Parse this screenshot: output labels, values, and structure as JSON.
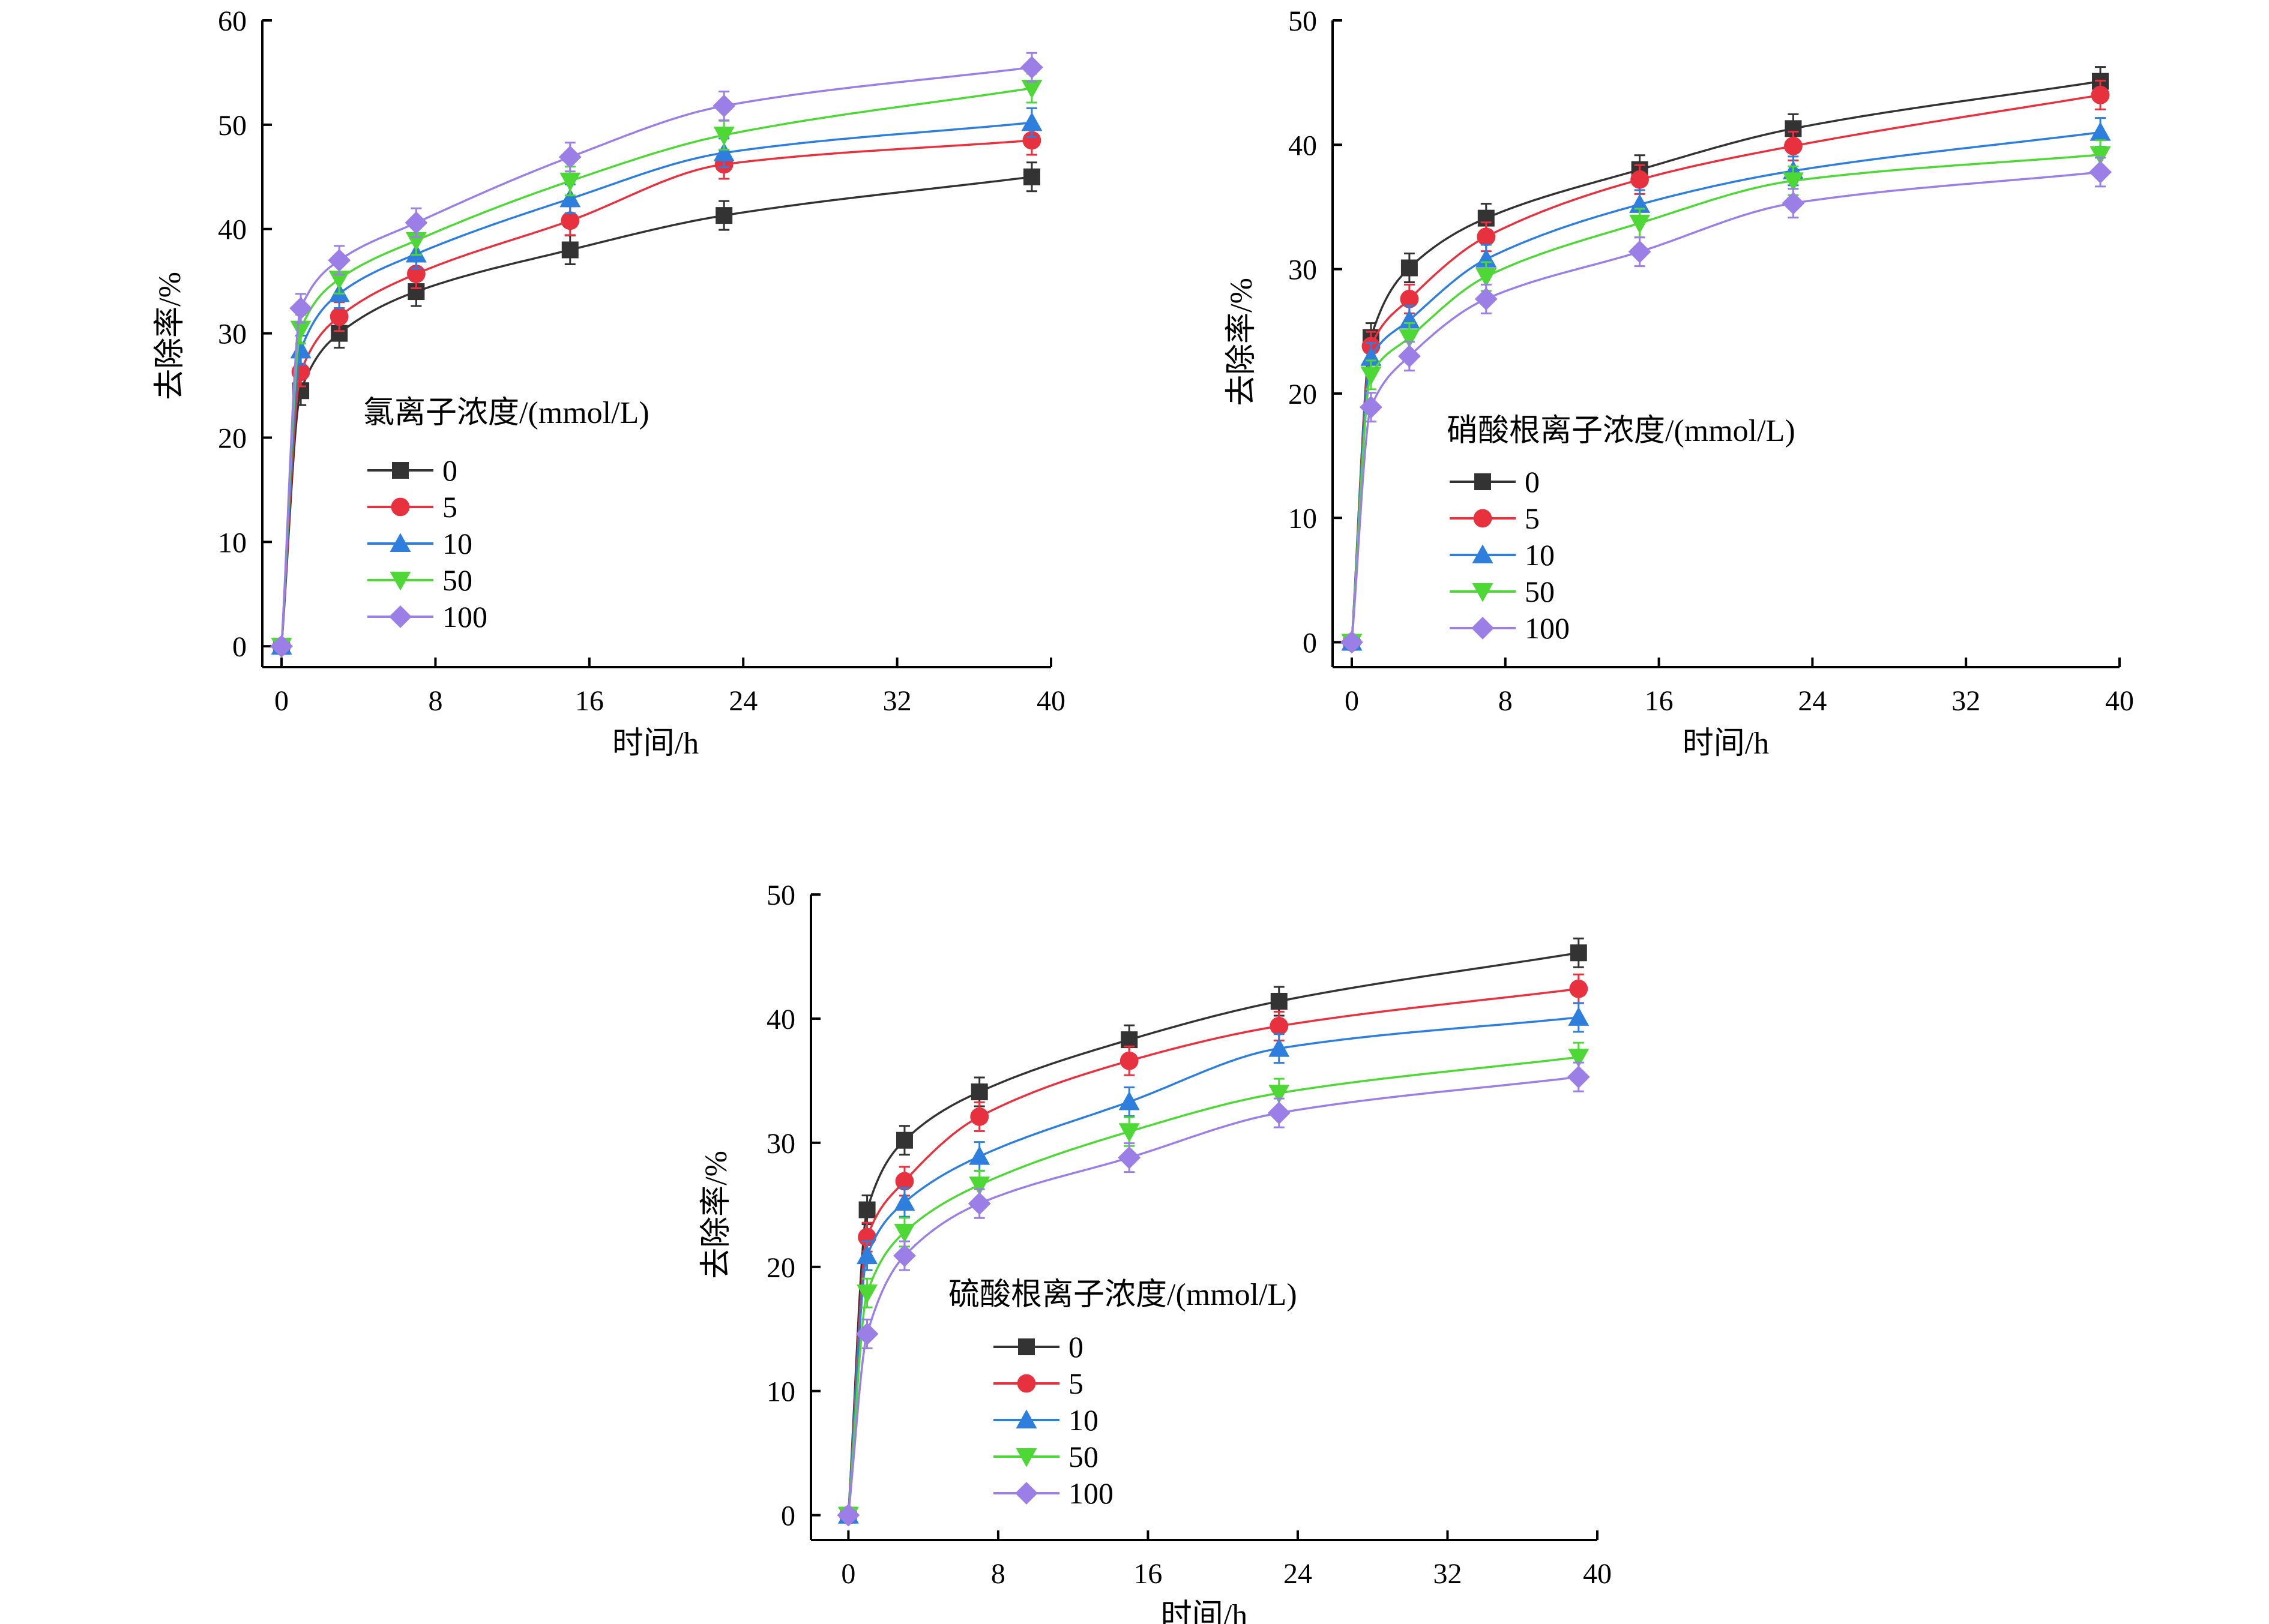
{
  "chart_data": [
    {
      "type": "line",
      "title": "",
      "legend_title": "氯离子浓度/(mmol/L)",
      "xlabel": "时间/h",
      "ylabel": "去除率/%",
      "xlim": [
        -1,
        40
      ],
      "ylim": [
        -2,
        60
      ],
      "xticks": [
        "0",
        "8",
        "16",
        "24",
        "32",
        "40"
      ],
      "yticks": [
        "0",
        "10",
        "20",
        "30",
        "40",
        "50",
        "60"
      ],
      "x": [
        0,
        1,
        3,
        7,
        15,
        23,
        39
      ],
      "series": [
        {
          "name": "0",
          "color": "#333333",
          "marker": "square",
          "values": [
            0,
            24.5,
            30.0,
            34.0,
            38.0,
            41.3,
            45.0
          ]
        },
        {
          "name": "5",
          "color": "#e8313f",
          "marker": "circle",
          "values": [
            0,
            26.3,
            31.6,
            35.7,
            40.8,
            46.2,
            48.5
          ]
        },
        {
          "name": "10",
          "color": "#2e7fdd",
          "marker": "triangle-up",
          "values": [
            0,
            28.4,
            33.8,
            37.6,
            42.9,
            47.3,
            50.2
          ]
        },
        {
          "name": "50",
          "color": "#4dd836",
          "marker": "triangle-down",
          "values": [
            0,
            30.4,
            35.2,
            38.9,
            44.6,
            49.0,
            53.5
          ]
        },
        {
          "name": "100",
          "color": "#9b7fe6",
          "marker": "diamond",
          "values": [
            0,
            32.4,
            37.0,
            40.6,
            46.9,
            51.8,
            55.5
          ]
        }
      ]
    },
    {
      "type": "line",
      "title": "",
      "legend_title": "硝酸根离子浓度/(mmol/L)",
      "xlabel": "时间/h",
      "ylabel": "去除率/%",
      "xlim": [
        -1,
        40
      ],
      "ylim": [
        -2,
        50
      ],
      "xticks": [
        "0",
        "8",
        "16",
        "24",
        "32",
        "40"
      ],
      "yticks": [
        "0",
        "10",
        "20",
        "30",
        "40",
        "50"
      ],
      "x": [
        0,
        1,
        3,
        7,
        15,
        23,
        39
      ],
      "series": [
        {
          "name": "0",
          "color": "#333333",
          "marker": "square",
          "values": [
            0,
            24.5,
            30.1,
            34.1,
            38.0,
            41.3,
            45.1
          ]
        },
        {
          "name": "5",
          "color": "#e8313f",
          "marker": "circle",
          "values": [
            0,
            23.8,
            27.6,
            32.6,
            37.2,
            39.9,
            44.0
          ]
        },
        {
          "name": "10",
          "color": "#2e7fdd",
          "marker": "triangle-up",
          "values": [
            0,
            22.9,
            25.9,
            30.8,
            35.2,
            37.9,
            41.0
          ]
        },
        {
          "name": "50",
          "color": "#4dd836",
          "marker": "triangle-down",
          "values": [
            0,
            21.5,
            24.5,
            29.4,
            33.7,
            37.1,
            39.2
          ]
        },
        {
          "name": "100",
          "color": "#9b7fe6",
          "marker": "diamond",
          "values": [
            0,
            18.9,
            23.0,
            27.6,
            31.4,
            35.3,
            37.8
          ]
        }
      ]
    },
    {
      "type": "line",
      "title": "",
      "legend_title": "硫酸根离子浓度/(mmol/L)",
      "xlabel": "时间/h",
      "ylabel": "去除率/%",
      "xlim": [
        -2,
        40
      ],
      "ylim": [
        -2,
        50
      ],
      "xticks": [
        "0",
        "8",
        "16",
        "24",
        "32",
        "40"
      ],
      "yticks": [
        "0",
        "10",
        "20",
        "30",
        "40",
        "50"
      ],
      "x": [
        0,
        1,
        3,
        7,
        15,
        23,
        39
      ],
      "series": [
        {
          "name": "0",
          "color": "#333333",
          "marker": "square",
          "values": [
            0,
            24.6,
            30.2,
            34.1,
            38.3,
            41.4,
            45.3
          ]
        },
        {
          "name": "5",
          "color": "#e8313f",
          "marker": "circle",
          "values": [
            0,
            22.4,
            26.9,
            32.1,
            36.6,
            39.4,
            42.4
          ]
        },
        {
          "name": "10",
          "color": "#2e7fdd",
          "marker": "triangle-up",
          "values": [
            0,
            20.9,
            25.2,
            28.9,
            33.3,
            37.6,
            40.1
          ]
        },
        {
          "name": "50",
          "color": "#4dd836",
          "marker": "triangle-down",
          "values": [
            0,
            17.9,
            22.8,
            26.6,
            30.9,
            34.0,
            36.9
          ]
        },
        {
          "name": "100",
          "color": "#9b7fe6",
          "marker": "diamond",
          "values": [
            0,
            14.6,
            20.9,
            25.1,
            28.8,
            32.4,
            35.3
          ]
        }
      ]
    }
  ]
}
